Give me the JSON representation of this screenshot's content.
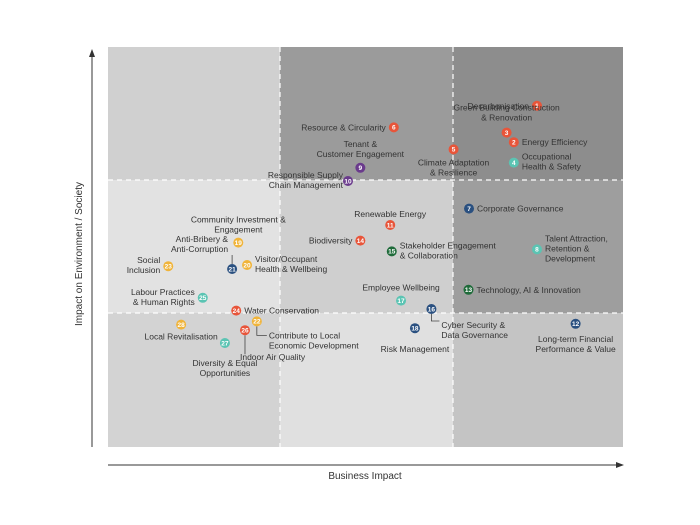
{
  "chart_data": {
    "type": "scatter",
    "title": "",
    "xlabel": "Business Impact",
    "ylabel": "Impact on Environment / Society",
    "grid": "3x3 quadrant matrix with dashed dividers",
    "colors": {
      "orange": "#e8553a",
      "teal": "#5bc4b3",
      "navy": "#2a5080",
      "purple": "#6a3a8c",
      "green": "#1f6b3a",
      "yellow": "#f0b43a"
    },
    "points": [
      {
        "id": "1",
        "label": "Decarbonisation",
        "color": "orange",
        "x": 8.33,
        "y": 8.53
      },
      {
        "id": "2",
        "label": "Energy Efficiency",
        "color": "orange",
        "x": 7.88,
        "y": 7.62
      },
      {
        "id": "3",
        "label": "Green Building Construction & Renovation",
        "color": "orange",
        "x": 7.74,
        "y": 7.86
      },
      {
        "id": "4",
        "label": "Occupational Health & Safety",
        "color": "teal",
        "x": 7.88,
        "y": 7.11
      },
      {
        "id": "5",
        "label": "Climate Adaptation & Resilience",
        "color": "orange",
        "x": 6.71,
        "y": 7.44
      },
      {
        "id": "6",
        "label": "Resource & Circularity",
        "color": "orange",
        "x": 5.55,
        "y": 7.99
      },
      {
        "id": "7",
        "label": "Corporate Governance",
        "color": "navy",
        "x": 7.01,
        "y": 5.96
      },
      {
        "id": "8",
        "label": "Talent Attraction, Retention & Development",
        "color": "teal",
        "x": 8.33,
        "y": 4.94
      },
      {
        "id": "9",
        "label": "Tenant & Customer Engagement",
        "color": "purple",
        "x": 4.9,
        "y": 6.98
      },
      {
        "id": "10",
        "label": "Responsible Supply Chain Management",
        "color": "purple",
        "x": 4.66,
        "y": 6.65
      },
      {
        "id": "11",
        "label": "Renewable Energy",
        "color": "orange",
        "x": 5.48,
        "y": 5.55
      },
      {
        "id": "12",
        "label": "Long-term Financial Performance & Value",
        "color": "navy",
        "x": 9.08,
        "y": 3.08
      },
      {
        "id": "13",
        "label": "Technology, AI & Innovation",
        "color": "green",
        "x": 7.0,
        "y": 3.93
      },
      {
        "id": "14",
        "label": "Biodiversity",
        "color": "orange",
        "x": 4.9,
        "y": 5.16
      },
      {
        "id": "15",
        "label": "Stakeholder Engagement & Collaboration",
        "color": "green",
        "x": 5.51,
        "y": 4.89
      },
      {
        "id": "16",
        "label": "Cyber Security & Data Governance",
        "color": "navy",
        "x": 6.28,
        "y": 3.45
      },
      {
        "id": "17",
        "label": "Employee Wellbeing",
        "color": "teal",
        "x": 5.69,
        "y": 3.66
      },
      {
        "id": "18",
        "label": "Risk Management",
        "color": "navy",
        "x": 5.96,
        "y": 2.97
      },
      {
        "id": "19",
        "label": "Community Investment & Engagement",
        "color": "yellow",
        "x": 2.53,
        "y": 5.11
      },
      {
        "id": "20",
        "label": "Visitor/Occupant Health & Wellbeing",
        "color": "yellow",
        "x": 2.7,
        "y": 4.55
      },
      {
        "id": "21",
        "label": "Anti-Bribery & Anti-Corruption",
        "color": "navy",
        "x": 2.41,
        "y": 4.45
      },
      {
        "id": "22",
        "label": "Contribute to Local Economic Development",
        "color": "yellow",
        "x": 2.89,
        "y": 3.14
      },
      {
        "id": "23",
        "label": "Social Inclusion",
        "color": "yellow",
        "x": 1.17,
        "y": 4.52
      },
      {
        "id": "24",
        "label": "Water Conservation",
        "color": "orange",
        "x": 2.49,
        "y": 3.41
      },
      {
        "id": "25",
        "label": "Labour Practices & Human Rights",
        "color": "teal",
        "x": 1.84,
        "y": 3.73
      },
      {
        "id": "26",
        "label": "Indoor Air Quality",
        "color": "orange",
        "x": 2.66,
        "y": 2.92
      },
      {
        "id": "27",
        "label": "Diversity & Equal Opportunities",
        "color": "teal",
        "x": 2.27,
        "y": 2.6
      },
      {
        "id": "28",
        "label": "Local Revitalisation",
        "color": "yellow",
        "x": 1.42,
        "y": 3.06
      }
    ]
  }
}
